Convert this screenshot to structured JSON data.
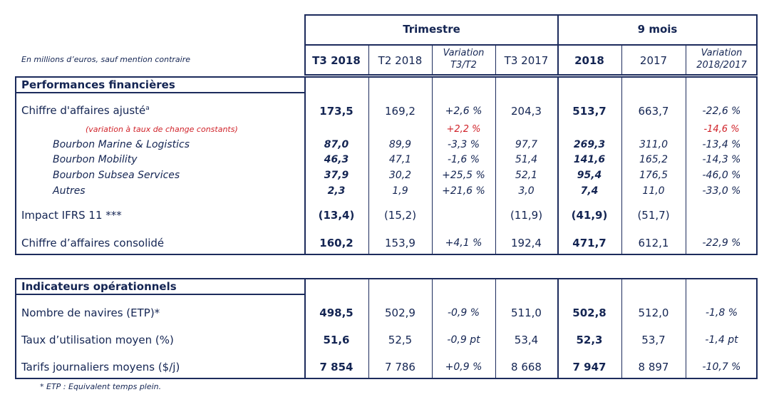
{
  "header": {
    "group_trimestre": "Trimestre",
    "group_9mois": "9 mois",
    "units_note": "En millions d’euros, sauf mention contraire",
    "columns": [
      "T3 2018",
      "T2 2018",
      "Variation T3/T2",
      "T3 2017",
      "2018",
      "2017",
      "Variation 2018/2017"
    ],
    "col_var1_l1": "Variation",
    "col_var1_l2": "T3/T2",
    "col_var2_l1": "Variation",
    "col_var2_l2": "2018/2017"
  },
  "financial": {
    "section_title": "Performances financières",
    "rows": [
      {
        "label": "Chiffre d'affaires ajusté",
        "sup": "a",
        "values": [
          "173,5",
          "169,2",
          "+2,6 %",
          "204,3",
          "513,7",
          "663,7",
          "-22,6 %"
        ]
      },
      {
        "label": "(variation à taux de change constants)",
        "values": [
          "",
          "",
          "+2,2 %",
          "",
          "",
          "",
          "-14,6 %"
        ]
      },
      {
        "label": "Bourbon Marine & Logistics",
        "values": [
          "87,0",
          "89,9",
          "-3,3 %",
          "97,7",
          "269,3",
          "311,0",
          "-13,4 %"
        ]
      },
      {
        "label": "Bourbon Mobility",
        "values": [
          "46,3",
          "47,1",
          "-1,6 %",
          "51,4",
          "141,6",
          "165,2",
          "-14,3 %"
        ]
      },
      {
        "label": "Bourbon Subsea Services",
        "values": [
          "37,9",
          "30,2",
          "+25,5 %",
          "52,1",
          "95,4",
          "176,5",
          "-46,0 %"
        ]
      },
      {
        "label": "Autres",
        "values": [
          "2,3",
          "1,9",
          "+21,6 %",
          "3,0",
          "7,4",
          "11,0",
          "-33,0 %"
        ]
      },
      {
        "label": "Impact IFRS 11 ***",
        "values": [
          "(13,4)",
          "(15,2)",
          "",
          "(11,9)",
          "(41,9)",
          "(51,7)",
          ""
        ]
      },
      {
        "label": "Chiffre d’affaires consolidé",
        "values": [
          "160,2",
          "153,9",
          "+4,1 %",
          "192,4",
          "471,7",
          "612,1",
          "-22,9 %"
        ]
      }
    ]
  },
  "operational": {
    "section_title": "Indicateurs opérationnels",
    "rows": [
      {
        "label": "Nombre de navires (ETP)*",
        "values": [
          "498,5",
          "502,9",
          "-0,9 %",
          "511,0",
          "502,8",
          "512,0",
          "-1,8 %"
        ]
      },
      {
        "label": "Taux d’utilisation moyen (%)",
        "values": [
          "51,6",
          "52,5",
          "-0,9 pt",
          "53,4",
          "52,3",
          "53,7",
          "-1,4 pt"
        ]
      },
      {
        "label": "Tarifs journaliers moyens ($/j)",
        "values": [
          "7 854",
          "7 786",
          "+0,9 %",
          "8 668",
          "7 947",
          "8 897",
          "-10,7 %"
        ]
      }
    ]
  },
  "footnote": "* ETP : Equivalent temps plein."
}
